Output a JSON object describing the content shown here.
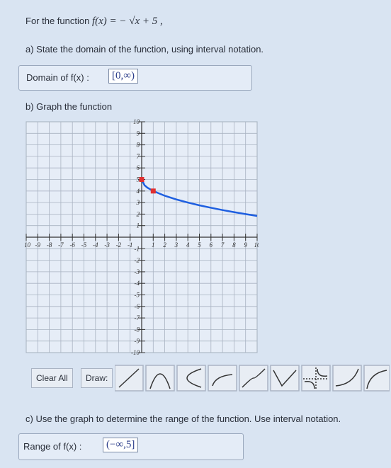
{
  "question": {
    "prompt": "For the function",
    "formula": "f(x) = − √x + 5 ,"
  },
  "part_a": {
    "text": "a) State the domain of the function, using interval notation.",
    "label": "Domain of f(x) :",
    "answer": "[0,∞)"
  },
  "part_b": {
    "text": "b) Graph the function"
  },
  "graph": {
    "xlim": [
      -10,
      10
    ],
    "ylim": [
      -10,
      10
    ],
    "xticks": [
      -10,
      -9,
      -8,
      -7,
      -6,
      -5,
      -4,
      -3,
      -2,
      -1,
      1,
      2,
      3,
      4,
      5,
      6,
      7,
      8,
      9,
      10
    ],
    "yticks": [
      -10,
      -9,
      -8,
      -7,
      -6,
      -5,
      -4,
      -3,
      -2,
      -1,
      1,
      2,
      3,
      4,
      5,
      6,
      7,
      8,
      9,
      10
    ],
    "curve": {
      "color": "#1e5fe0",
      "x": [
        0,
        0.25,
        0.5,
        1,
        2,
        3,
        4,
        5,
        6,
        7,
        8,
        9,
        10
      ],
      "y": [
        5,
        4.5,
        4.29,
        4,
        3.59,
        3.27,
        3,
        2.76,
        2.55,
        2.35,
        2.17,
        2,
        1.84
      ]
    },
    "points": [
      [
        0,
        5
      ],
      [
        1,
        4
      ]
    ],
    "point_color": "#e03030"
  },
  "toolbar": {
    "clear": "Clear All",
    "draw": "Draw:"
  },
  "part_c": {
    "text": "c) Use the graph to determine the range of the function. Use interval notation.",
    "label": "Range of f(x) :",
    "answer": "(−∞,5]"
  }
}
